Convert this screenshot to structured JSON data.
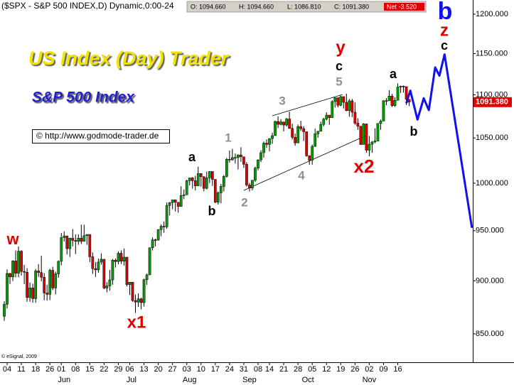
{
  "chart_data": {
    "type": "candlestick",
    "header": "($SPX - S&P 500 INDEX,D) Dynamic,0:00-24",
    "quote_values": [
      "O: 1094.660",
      "H: 1094.660",
      "L: 1086.810",
      "C: 1091.380"
    ],
    "net": "Net -3.520",
    "title": "US Index (Day) Trader",
    "subtitle": "S&P 500 Index",
    "source": "© http://www.godmode-trader.de",
    "copyright": "© eSignal, 2009",
    "wave_labels": [
      "w",
      "x1",
      "a",
      "b",
      "1",
      "2",
      "3",
      "4",
      "5",
      "c",
      "y",
      "x2",
      "a",
      "b",
      "c",
      "z",
      "b"
    ],
    "log_scale": true,
    "up_color": "#00a000",
    "down_color": "#e00000",
    "ylim": [
      824.3,
      1218.5
    ],
    "yticks": [
      {
        "value": 850,
        "label": "850.000"
      },
      {
        "value": 900,
        "label": "900.000"
      },
      {
        "value": 950,
        "label": "950.000"
      },
      {
        "value": 1000,
        "label": "1000.000"
      },
      {
        "value": 1050,
        "label": "1050.000"
      },
      {
        "value": 1100,
        "label": "1100.000"
      },
      {
        "value": 1150,
        "label": "1150.000"
      },
      {
        "value": 1200,
        "label": "1200.000"
      }
    ],
    "xlim": [
      -1.5,
      164.3
    ],
    "xticks": [
      {
        "value": 1,
        "label": "04"
      },
      {
        "value": 6,
        "label": "11"
      },
      {
        "value": 11,
        "label": "18"
      },
      {
        "value": 16,
        "label": "26"
      },
      {
        "value": 20,
        "label": "01"
      },
      {
        "value": 25,
        "label": "08"
      },
      {
        "value": 30,
        "label": "15"
      },
      {
        "value": 35,
        "label": "22"
      },
      {
        "value": 40,
        "label": "29"
      },
      {
        "value": 44,
        "label": "06"
      },
      {
        "value": 49,
        "label": "13"
      },
      {
        "value": 54,
        "label": "20"
      },
      {
        "value": 59,
        "label": "27"
      },
      {
        "value": 64,
        "label": "03"
      },
      {
        "value": 69,
        "label": "10"
      },
      {
        "value": 74,
        "label": "17"
      },
      {
        "value": 79,
        "label": "24"
      },
      {
        "value": 84,
        "label": "31"
      },
      {
        "value": 89,
        "label": "08"
      },
      {
        "value": 93,
        "label": "14"
      },
      {
        "value": 98,
        "label": "21"
      },
      {
        "value": 103,
        "label": "28"
      },
      {
        "value": 108,
        "label": "05"
      },
      {
        "value": 113,
        "label": "12"
      },
      {
        "value": 118,
        "label": "19"
      },
      {
        "value": 123,
        "label": "26"
      },
      {
        "value": 128,
        "label": "02"
      },
      {
        "value": 133,
        "label": "09"
      },
      {
        "value": 138,
        "label": "16"
      }
    ],
    "month_labels": [
      {
        "value": 21,
        "label": "Jun"
      },
      {
        "value": 44.6,
        "label": "Jul"
      },
      {
        "value": 65,
        "label": "Aug"
      },
      {
        "value": 86,
        "label": "Sep"
      },
      {
        "value": 106.5,
        "label": "Oct"
      },
      {
        "value": 128,
        "label": "Nov"
      }
    ],
    "last_price": {
      "value": 1091.38,
      "label": "1091.380"
    },
    "candles": [
      [
        866.2,
        880.4,
        862.0,
        877.5
      ],
      [
        877.5,
        911.2,
        873.5,
        907.2
      ],
      [
        907.2,
        907.7,
        897.0,
        903.8
      ],
      [
        903.8,
        920.3,
        899.8,
        919.5
      ],
      [
        919.5,
        930.0,
        903.4,
        907.4
      ],
      [
        907.4,
        934.0,
        903.4,
        929.2
      ],
      [
        929.2,
        930.2,
        905.2,
        909.2
      ],
      [
        909.2,
        915.6,
        896.9,
        908.4
      ],
      [
        908.4,
        912.4,
        879.9,
        883.9
      ],
      [
        883.9,
        898.3,
        879.9,
        893.1
      ],
      [
        893.1,
        897.1,
        878.9,
        882.9
      ],
      [
        882.9,
        911.6,
        878.9,
        909.7
      ],
      [
        909.7,
        916.4,
        903.9,
        908.1
      ],
      [
        908.1,
        924.6,
        899.5,
        903.5
      ],
      [
        903.5,
        907.5,
        881.3,
        888.3
      ],
      [
        888.3,
        896.2,
        881.0,
        887.0
      ],
      [
        887.0,
        911.8,
        881.5,
        910.3
      ],
      [
        910.3,
        913.8,
        891.1,
        893.1
      ],
      [
        893.1,
        909.0,
        887.0,
        906.8
      ],
      [
        906.8,
        920.0,
        903.0,
        919.1
      ],
      [
        919.1,
        947.8,
        915.1,
        942.9
      ],
      [
        942.9,
        949.4,
        938.9,
        944.7
      ],
      [
        944.7,
        945.0,
        926.0,
        931.8
      ],
      [
        931.8,
        942.5,
        923.5,
        942.5
      ],
      [
        942.5,
        951.7,
        934.1,
        940.1
      ],
      [
        940.1,
        946.3,
        926.4,
        939.1
      ],
      [
        939.1,
        946.3,
        935.7,
        942.4
      ],
      [
        942.4,
        956.2,
        936.5,
        939.2
      ],
      [
        939.2,
        956.2,
        939.0,
        944.9
      ],
      [
        944.9,
        946.3,
        935.7,
        946.2
      ],
      [
        946.2,
        946.2,
        918.4,
        923.7
      ],
      [
        923.7,
        928.0,
        906.9,
        911.9
      ],
      [
        911.9,
        918.4,
        903.8,
        910.7
      ],
      [
        910.7,
        921.9,
        907.9,
        918.4
      ],
      [
        918.4,
        927.1,
        915.8,
        921.2
      ],
      [
        921.2,
        921.4,
        892.0,
        893.0
      ],
      [
        893.0,
        898.7,
        888.9,
        895.1
      ],
      [
        895.1,
        910.8,
        890.5,
        900.9
      ],
      [
        900.9,
        921.4,
        896.3,
        920.3
      ],
      [
        920.3,
        922.0,
        913.0,
        918.9
      ],
      [
        918.9,
        929.0,
        916.2,
        927.2
      ],
      [
        927.2,
        930.0,
        916.5,
        919.3
      ],
      [
        919.3,
        931.9,
        915.0,
        923.3
      ],
      [
        923.3,
        923.3,
        894.6,
        896.4
      ],
      [
        896.4,
        898.7,
        886.4,
        898.7
      ],
      [
        898.7,
        898.7,
        879.9,
        881.0
      ],
      [
        881.0,
        886.8,
        869.3,
        879.6
      ],
      [
        879.6,
        887.9,
        875.0,
        882.7
      ],
      [
        882.7,
        883.7,
        872.8,
        879.1
      ],
      [
        879.1,
        902.0,
        875.3,
        901.1
      ],
      [
        901.1,
        907.0,
        896.2,
        905.8
      ],
      [
        905.8,
        933.0,
        905.8,
        932.7
      ],
      [
        932.7,
        943.2,
        930.0,
        940.7
      ],
      [
        940.7,
        941.9,
        934.1,
        940.4
      ],
      [
        940.4,
        951.6,
        940.0,
        951.1
      ],
      [
        951.1,
        956.5,
        944.3,
        954.6
      ],
      [
        954.6,
        959.6,
        947.9,
        954.1
      ],
      [
        954.1,
        979.4,
        952.0,
        976.3
      ],
      [
        976.3,
        979.8,
        965.9,
        979.3
      ],
      [
        979.3,
        982.5,
        972.3,
        982.2
      ],
      [
        982.2,
        982.5,
        969.9,
        979.6
      ],
      [
        979.6,
        979.6,
        968.7,
        975.2
      ],
      [
        975.2,
        996.7,
        975.2,
        986.8
      ],
      [
        986.8,
        993.2,
        982.9,
        987.5
      ],
      [
        987.5,
        1003.7,
        987.5,
        1002.6
      ],
      [
        1002.6,
        1005.9,
        997.6,
        1005.7
      ],
      [
        1005.7,
        1006.6,
        994.1,
        1002.7
      ],
      [
        1002.7,
        1008.0,
        992.2,
        997.1
      ],
      [
        997.1,
        1018.0,
        997.1,
        1010.5
      ],
      [
        1010.5,
        1010.5,
        996.2,
        1007.1
      ],
      [
        1007.1,
        1007.1,
        991.3,
        994.4
      ],
      [
        994.4,
        1012.5,
        993.4,
        1005.8
      ],
      [
        1005.8,
        1013.1,
        1000.1,
        1012.7
      ],
      [
        1012.7,
        1012.7,
        997.0,
        1004.1
      ],
      [
        1004.1,
        1004.1,
        978.5,
        979.7
      ],
      [
        979.7,
        991.2,
        977.0,
        989.7
      ],
      [
        989.7,
        999.3,
        978.5,
        996.5
      ],
      [
        996.5,
        1008.9,
        991.0,
        1007.4
      ],
      [
        1007.4,
        1027.6,
        1005.9,
        1026.1
      ],
      [
        1026.1,
        1035.8,
        1022.5,
        1025.6
      ],
      [
        1025.6,
        1037.7,
        1024.5,
        1028.0
      ],
      [
        1028.0,
        1032.5,
        1021.4,
        1028.1
      ],
      [
        1028.1,
        1031.6,
        1015.0,
        1030.9
      ],
      [
        1030.9,
        1039.5,
        1023.3,
        1028.9
      ],
      [
        1028.9,
        1028.9,
        1016.5,
        1020.6
      ],
      [
        1020.6,
        1022.8,
        996.3,
        998.0
      ],
      [
        998.0,
        1000.3,
        991.0,
        994.8
      ],
      [
        994.8,
        1003.4,
        992.3,
        1003.2
      ],
      [
        1003.2,
        1018.0,
        1001.4,
        1016.4
      ],
      [
        1016.4,
        1026.1,
        1014.0,
        1025.4
      ],
      [
        1025.4,
        1036.3,
        1023.0,
        1033.4
      ],
      [
        1033.4,
        1046.0,
        1028.0,
        1044.1
      ],
      [
        1044.1,
        1048.4,
        1038.7,
        1042.7
      ],
      [
        1042.7,
        1049.7,
        1035.0,
        1049.3
      ],
      [
        1049.3,
        1056.0,
        1043.4,
        1052.6
      ],
      [
        1052.6,
        1069.8,
        1052.6,
        1068.8
      ],
      [
        1068.8,
        1074.8,
        1061.2,
        1065.5
      ],
      [
        1065.5,
        1071.5,
        1064.3,
        1068.3
      ],
      [
        1068.3,
        1068.3,
        1057.4,
        1064.7
      ],
      [
        1064.7,
        1073.0,
        1063.0,
        1071.7
      ],
      [
        1071.7,
        1080.2,
        1060.4,
        1060.9
      ],
      [
        1060.9,
        1066.3,
        1048.4,
        1050.8
      ],
      [
        1050.8,
        1055.1,
        1041.2,
        1044.4
      ],
      [
        1044.4,
        1065.4,
        1044.4,
        1062.9
      ],
      [
        1062.9,
        1069.6,
        1057.9,
        1060.6
      ],
      [
        1060.6,
        1063.4,
        1046.5,
        1057.1
      ],
      [
        1057.1,
        1057.1,
        1029.1,
        1029.9
      ],
      [
        1029.9,
        1030.6,
        1019.9,
        1025.2
      ],
      [
        1025.2,
        1042.6,
        1020.2,
        1040.5
      ],
      [
        1040.5,
        1060.6,
        1040.1,
        1054.7
      ],
      [
        1054.7,
        1058.0,
        1050.2,
        1057.6
      ],
      [
        1057.6,
        1068.6,
        1057.6,
        1065.5
      ],
      [
        1065.5,
        1073.0,
        1063.2,
        1071.5
      ],
      [
        1071.5,
        1079.5,
        1070.0,
        1076.2
      ],
      [
        1076.2,
        1076.2,
        1065.0,
        1073.2
      ],
      [
        1073.2,
        1093.5,
        1073.2,
        1092.0
      ],
      [
        1092.0,
        1097.0,
        1085.0,
        1096.6
      ],
      [
        1096.6,
        1096.6,
        1085.3,
        1087.7
      ],
      [
        1087.7,
        1099.0,
        1086.5,
        1097.9
      ],
      [
        1097.9,
        1098.0,
        1084.0,
        1091.1
      ],
      [
        1091.1,
        1101.4,
        1080.8,
        1081.4
      ],
      [
        1081.4,
        1095.2,
        1074.3,
        1092.9
      ],
      [
        1092.9,
        1095.2,
        1073.9,
        1079.6
      ],
      [
        1079.6,
        1091.0,
        1065.1,
        1066.9
      ],
      [
        1066.9,
        1072.5,
        1059.3,
        1063.4
      ],
      [
        1063.4,
        1063.6,
        1042.2,
        1042.6
      ],
      [
        1042.6,
        1066.8,
        1042.6,
        1066.1
      ],
      [
        1066.1,
        1066.1,
        1033.4,
        1036.2
      ],
      [
        1036.2,
        1052.2,
        1029.4,
        1042.9
      ],
      [
        1042.9,
        1046.5,
        1033.4,
        1045.4
      ],
      [
        1045.4,
        1061.0,
        1044.0,
        1046.5
      ],
      [
        1046.5,
        1066.7,
        1046.5,
        1066.6
      ],
      [
        1066.6,
        1071.0,
        1059.3,
        1069.3
      ],
      [
        1069.3,
        1093.5,
        1069.3,
        1093.1
      ],
      [
        1093.1,
        1096.1,
        1087.7,
        1093.0
      ],
      [
        1093.0,
        1105.4,
        1093.0,
        1098.5
      ],
      [
        1098.5,
        1101.2,
        1085.7,
        1087.2
      ],
      [
        1087.2,
        1097.0,
        1085.7,
        1093.5
      ],
      [
        1093.5,
        1113.7,
        1093.5,
        1109.3
      ],
      [
        1109.3,
        1110.9,
        1102.2,
        1110.3
      ],
      [
        1110.3,
        1111.1,
        1102.6,
        1109.8
      ],
      [
        1109.8,
        1109.8,
        1088.0,
        1094.9
      ],
      [
        1094.66,
        1094.66,
        1086.81,
        1091.38
      ]
    ],
    "projection": {
      "color": "#1010f0",
      "x": [
        141,
        142.4,
        144.9,
        147.1,
        148.9,
        151.1,
        152.6,
        154.4,
        164
      ],
      "values": [
        1090,
        1105,
        1071,
        1096,
        1082,
        1133,
        1123,
        1149,
        953
      ]
    }
  }
}
